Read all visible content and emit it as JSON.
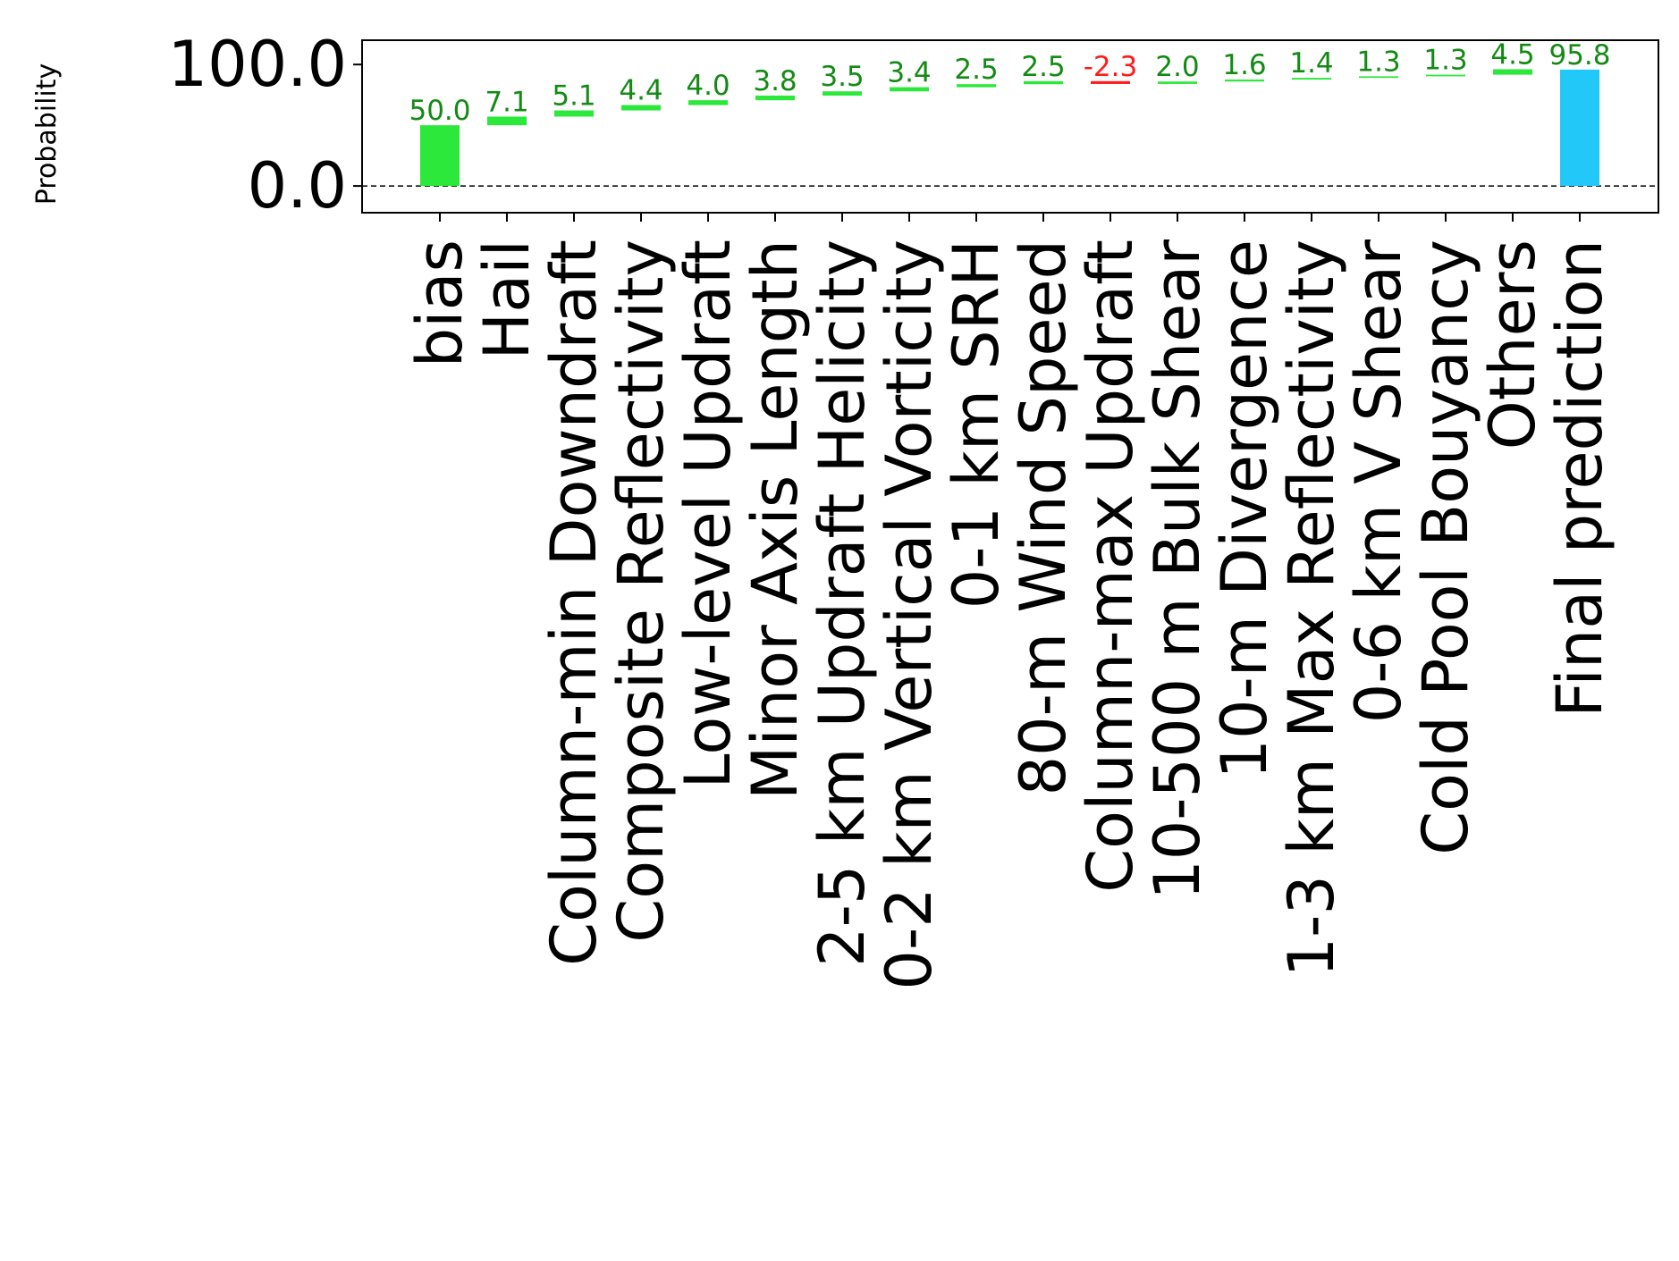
{
  "chart_data": {
    "type": "bar",
    "subtype": "waterfall",
    "ylabel": "Probability",
    "ylim": [
      -22,
      120
    ],
    "yticks": [
      {
        "value": 0,
        "label": "0.0"
      },
      {
        "value": 100,
        "label": "100.0"
      }
    ],
    "baseline": {
      "value": 0,
      "style": "dashed"
    },
    "grid": false,
    "legend": "none",
    "colors": {
      "bias": "#2be83a",
      "positive": "#2be83a",
      "negative": "#ff1a1a",
      "final": "#22c8f8",
      "positive_label": "#138a13",
      "negative_label": "#ff1a1a",
      "final_label": "#138a13"
    },
    "bars": [
      {
        "category": "bias",
        "value": 50.0,
        "label": "50.0",
        "kind": "bias"
      },
      {
        "category": "Hail",
        "value": 7.1,
        "label": "7.1",
        "kind": "contribution"
      },
      {
        "category": "Column-min Downdraft",
        "value": 5.1,
        "label": "5.1",
        "kind": "contribution"
      },
      {
        "category": "Composite Reflectivity",
        "value": 4.4,
        "label": "4.4",
        "kind": "contribution"
      },
      {
        "category": "Low-level Updraft",
        "value": 4.0,
        "label": "4.0",
        "kind": "contribution"
      },
      {
        "category": "Minor Axis Length",
        "value": 3.8,
        "label": "3.8",
        "kind": "contribution"
      },
      {
        "category": "2-5 km Updraft Helicity",
        "value": 3.5,
        "label": "3.5",
        "kind": "contribution"
      },
      {
        "category": "0-2 km Vertical Vorticity",
        "value": 3.4,
        "label": "3.4",
        "kind": "contribution"
      },
      {
        "category": "0-1 km SRH",
        "value": 2.5,
        "label": "2.5",
        "kind": "contribution"
      },
      {
        "category": "80-m Wind Speed",
        "value": 2.5,
        "label": "2.5",
        "kind": "contribution"
      },
      {
        "category": "Column-max Updraft",
        "value": -2.3,
        "label": "-2.3",
        "kind": "contribution"
      },
      {
        "category": "10-500 m Bulk Shear",
        "value": 2.0,
        "label": "2.0",
        "kind": "contribution"
      },
      {
        "category": "10-m Divergence",
        "value": 1.6,
        "label": "1.6",
        "kind": "contribution"
      },
      {
        "category": "1-3 km Max Reflectivity",
        "value": 1.4,
        "label": "1.4",
        "kind": "contribution"
      },
      {
        "category": "0-6 km V Shear",
        "value": 1.3,
        "label": "1.3",
        "kind": "contribution"
      },
      {
        "category": "Cold Pool Bouyancy",
        "value": 1.3,
        "label": "1.3",
        "kind": "contribution"
      },
      {
        "category": "Others",
        "value": 4.5,
        "label": "4.5",
        "kind": "contribution"
      },
      {
        "category": "Final prediction",
        "value": 95.8,
        "label": "95.8",
        "kind": "final"
      }
    ]
  }
}
